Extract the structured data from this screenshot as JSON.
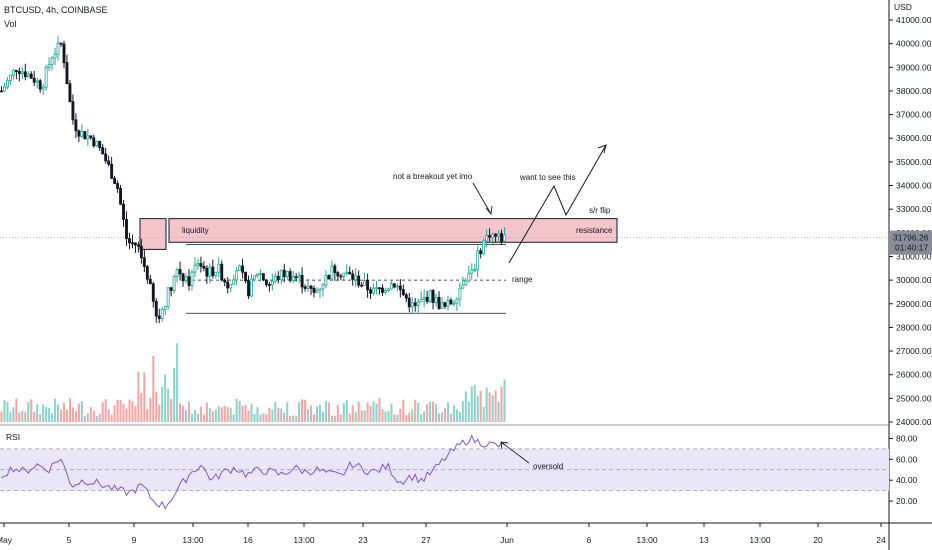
{
  "header": {
    "symbol": "BTCUSD, 4h, COINBASE",
    "volume_label": "Vol"
  },
  "price_axis": {
    "currency": "USD",
    "ticks": [
      "41000.00",
      "40000.00",
      "39000.00",
      "38000.00",
      "37000.00",
      "36000.00",
      "35000.00",
      "34000.00",
      "33000.00",
      "32000.00",
      "31000.00",
      "30000.00",
      "29000.00",
      "28000.00",
      "27000.00",
      "26000.00",
      "25000.00",
      "24000.00"
    ],
    "current_price": "31796.26",
    "countdown": "01:40:17"
  },
  "rsi_pane": {
    "label": "RSI",
    "ticks": [
      "80.00",
      "60.00",
      "40.00",
      "20.00"
    ],
    "upper_band": 70,
    "lower_band": 30,
    "mid": 50
  },
  "time_axis": {
    "ticks": [
      "May",
      "5",
      "9",
      "13:00",
      "16",
      "13:00",
      "23",
      "27",
      "Jun",
      "6",
      "13:00",
      "13",
      "13:00",
      "20",
      "24"
    ]
  },
  "annotations": {
    "liquidity": "liquidity",
    "resistance": "resistance",
    "sr_flip": "s/r flip",
    "range": "range",
    "not_breakout": "not a breakout yet imo",
    "want_to_see": "want to see this",
    "oversold": "oversold"
  },
  "colors": {
    "up": "#26a69a",
    "down": "#131722",
    "vol_up": "#8fd3cc",
    "vol_down": "#f2a6a6",
    "zone_fill": "#f4c6cc",
    "zone_stroke": "#131722",
    "rsi_line": "#7e57c2",
    "rsi_band": "#e8e6f7"
  },
  "chart_data": {
    "type": "candlestick",
    "title": "BTCUSD, 4h, COINBASE",
    "y_unit": "USD",
    "ylim": [
      24000,
      41500
    ],
    "resistance_zone": [
      31600,
      32600
    ],
    "range_high": 31500,
    "range_mid": 30000,
    "range_low": 28600,
    "last_price": 31796.26,
    "price_path_x_fraction": [
      0.0,
      0.03,
      0.06,
      0.08,
      0.1,
      0.12,
      0.14,
      0.15,
      0.16,
      0.18,
      0.2,
      0.23,
      0.25,
      0.27,
      0.29,
      0.31,
      0.33,
      0.35,
      0.37,
      0.39,
      0.41,
      0.43,
      0.45,
      0.47,
      0.49,
      0.51,
      0.53,
      0.56,
      0.59,
      0.62,
      0.66,
      0.7,
      0.74,
      0.78,
      0.82,
      0.85,
      0.88,
      0.9,
      0.92,
      0.94,
      0.955,
      0.97,
      0.985,
      1.0
    ],
    "price_path": [
      38000,
      39000,
      38600,
      38200,
      39500,
      40000,
      36900,
      36400,
      36200,
      36000,
      35400,
      34000,
      31600,
      31500,
      30200,
      28200,
      29400,
      30500,
      29800,
      30800,
      30300,
      30500,
      29800,
      30600,
      29500,
      30400,
      29800,
      30300,
      30100,
      29400,
      30500,
      30100,
      29500,
      29900,
      28800,
      29400,
      28800,
      29200,
      30100,
      30600,
      31500,
      32000,
      31800,
      31800
    ],
    "rsi_values": [
      45,
      52,
      48,
      55,
      50,
      62,
      35,
      40,
      38,
      34,
      30,
      28,
      35,
      20,
      15,
      30,
      45,
      55,
      40,
      48,
      52,
      45,
      50,
      48,
      45,
      52,
      48,
      50,
      46,
      44,
      56,
      50,
      48,
      54,
      38,
      44,
      40,
      50,
      62,
      72,
      80,
      76,
      74,
      72
    ]
  }
}
